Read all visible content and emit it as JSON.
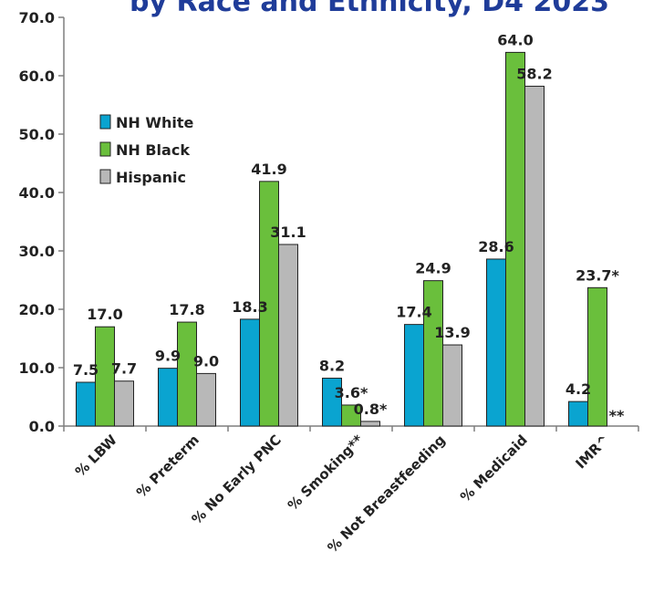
{
  "chart_data": {
    "type": "bar",
    "title": "by Race and Ethnicity, D4 2023",
    "xlabel": "",
    "ylabel": "",
    "ylim": [
      0,
      70
    ],
    "yticks": [
      "0.0",
      "10.0",
      "20.0",
      "30.0",
      "40.0",
      "50.0",
      "60.0",
      "70.0"
    ],
    "categories": [
      "% LBW",
      "% Preterm",
      "% No Early PNC",
      "% Smoking**",
      "% Not Breastfeeding",
      "% Medicaid",
      "IMR^"
    ],
    "series": [
      {
        "name": "NH White",
        "color": "#0aa4d0",
        "values": [
          7.5,
          9.9,
          18.3,
          8.2,
          17.4,
          28.6,
          4.2
        ],
        "labels": [
          "7.5",
          "9.9",
          "18.3",
          "8.2",
          "17.4",
          "28.6",
          "4.2"
        ]
      },
      {
        "name": "NH Black",
        "color": "#6abf3c",
        "values": [
          17.0,
          17.8,
          41.9,
          3.6,
          24.9,
          64.0,
          23.7
        ],
        "labels": [
          "17.0",
          "17.8",
          "41.9",
          "3.6*",
          "24.9",
          "64.0",
          "23.7*"
        ]
      },
      {
        "name": "Hispanic",
        "color": "#b8b8b8",
        "values": [
          7.7,
          9.0,
          31.1,
          0.8,
          13.9,
          58.2,
          null
        ],
        "labels": [
          "7.7",
          "9.0",
          "31.1",
          "0.8*",
          "13.9",
          "58.2",
          "**"
        ]
      }
    ],
    "grid": false,
    "legend_position": "top-left"
  }
}
